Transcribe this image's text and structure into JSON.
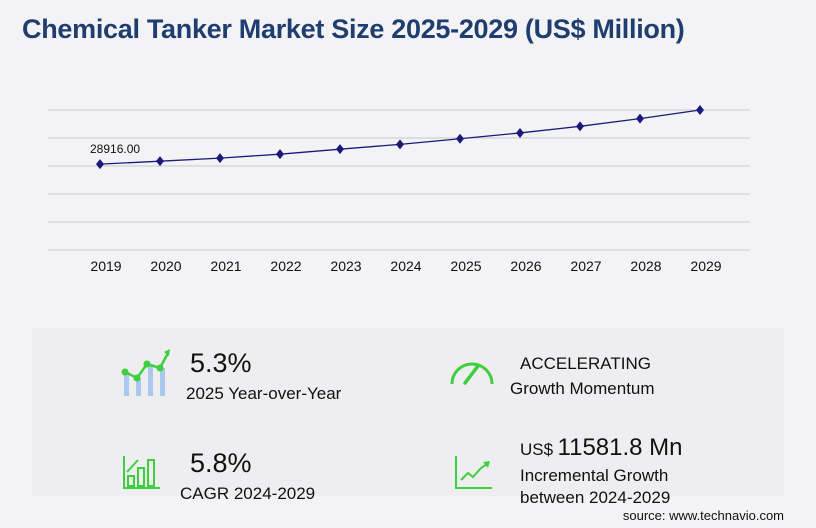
{
  "title": "Chemical Tanker Market Size 2025-2029 (US$ Million)",
  "chart_data": {
    "type": "line",
    "title": "Chemical Tanker Market Size 2025-2029 (US$ Million)",
    "categories": [
      "2019",
      "2020",
      "2021",
      "2022",
      "2023",
      "2024",
      "2025",
      "2026",
      "2027",
      "2028",
      "2029"
    ],
    "values": [
      28916.0,
      29925,
      30940,
      32280,
      33960,
      35580,
      37470,
      39430,
      41660,
      44250,
      47160
    ],
    "data_labels": {
      "2019": "28916.00"
    },
    "ylim": [
      0,
      47160
    ],
    "grid": true,
    "line_color": "#1a1a7a"
  },
  "stats": {
    "yoy_value": "5.3%",
    "yoy_label": "2025 Year-over-Year",
    "momentum_value": "ACCELERATING",
    "momentum_label": "Growth Momentum",
    "cagr_value": "5.8%",
    "cagr_label": "CAGR 2024-2029",
    "incr_prefix": "US$",
    "incr_value": "11581.8 Mn",
    "incr_label1": "Incremental Growth",
    "incr_label2": "between 2024-2029"
  },
  "source": "source: www.technavio.com",
  "colors": {
    "accent_green": "#3ecf3e",
    "title_blue": "#1f3d6e",
    "bar_blue": "#a9c8f0"
  }
}
